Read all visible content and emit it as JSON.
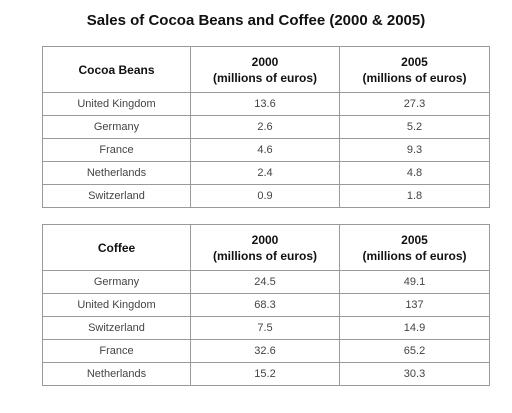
{
  "title": "Sales of Cocoa Beans and Coffee (2000 & 2005)",
  "chart_data": [
    {
      "type": "table",
      "columns": [
        "Cocoa Beans",
        "2000 (millions of euros)",
        "2005 (millions of euros)"
      ],
      "header": {
        "col1": "Cocoa Beans",
        "col2_year": "2000",
        "col2_unit": "(millions of euros)",
        "col3_year": "2005",
        "col3_unit": "(millions of euros)"
      },
      "rows": [
        [
          "United Kingdom",
          "13.6",
          "27.3"
        ],
        [
          "Germany",
          "2.6",
          "5.2"
        ],
        [
          "France",
          "4.6",
          "9.3"
        ],
        [
          "Netherlands",
          "2.4",
          "4.8"
        ],
        [
          "Switzerland",
          "0.9",
          "1.8"
        ]
      ]
    },
    {
      "type": "table",
      "columns": [
        "Coffee",
        "2000 (millions of euros)",
        "2005 (millions of euros)"
      ],
      "header": {
        "col1": "Coffee",
        "col2_year": "2000",
        "col2_unit": "(millions of euros)",
        "col3_year": "2005",
        "col3_unit": "(millions of euros)"
      },
      "rows": [
        [
          "Germany",
          "24.5",
          "49.1"
        ],
        [
          "United Kingdom",
          "68.3",
          "137"
        ],
        [
          "Switzerland",
          "7.5",
          "14.9"
        ],
        [
          "France",
          "32.6",
          "65.2"
        ],
        [
          "Netherlands",
          "15.2",
          "30.3"
        ]
      ]
    }
  ]
}
